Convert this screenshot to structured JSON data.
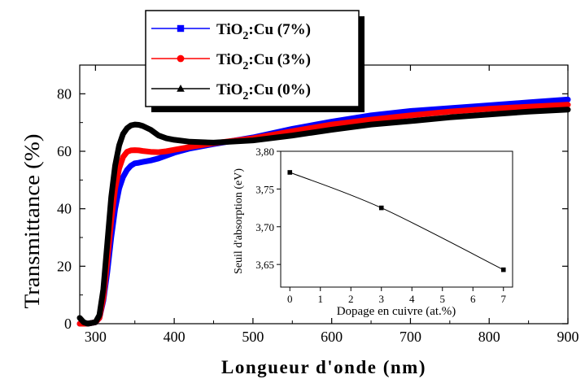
{
  "chart_data": [
    {
      "type": "line",
      "xlabel": "Longueur d'onde (nm)",
      "ylabel": "Transmittance (%)",
      "xlim": [
        280,
        900
      ],
      "ylim": [
        0,
        90
      ],
      "x_ticks": [
        "300",
        "400",
        "500",
        "600",
        "700",
        "800",
        "900"
      ],
      "y_ticks": [
        "0",
        "20",
        "40",
        "60",
        "80"
      ],
      "legend_position": "top-left",
      "series": [
        {
          "name_base": "TiO",
          "name_sub": "2",
          "name_rest": ":Cu (7%)",
          "color": "#0000ff",
          "marker": "square",
          "x": [
            280,
            290,
            300,
            305,
            310,
            315,
            320,
            325,
            330,
            335,
            340,
            345,
            350,
            355,
            360,
            370,
            380,
            390,
            400,
            420,
            450,
            500,
            550,
            600,
            650,
            700,
            750,
            800,
            850,
            900
          ],
          "y": [
            0,
            0,
            0.5,
            2,
            8,
            18,
            30,
            40,
            47,
            51,
            53.5,
            55,
            55.8,
            56,
            56.3,
            56.8,
            57.5,
            58.5,
            59.5,
            61,
            62.5,
            64.8,
            67.8,
            70.3,
            72.5,
            74,
            75,
            76,
            77,
            78
          ]
        },
        {
          "name_base": "TiO",
          "name_sub": "2",
          "name_rest": ":Cu (3%)",
          "color": "#ff0000",
          "marker": "circle",
          "x": [
            280,
            290,
            300,
            305,
            310,
            315,
            320,
            325,
            330,
            335,
            340,
            345,
            350,
            355,
            360,
            370,
            380,
            390,
            400,
            420,
            450,
            500,
            550,
            600,
            650,
            700,
            750,
            800,
            850,
            900
          ],
          "y": [
            0,
            0,
            0.5,
            2,
            9,
            22,
            36,
            47,
            54,
            58,
            59.8,
            60.3,
            60.4,
            60.3,
            60.1,
            59.8,
            59.7,
            60,
            60.5,
            61.5,
            62.8,
            64.5,
            67,
            69.3,
            71,
            72.5,
            73.8,
            74.8,
            75.5,
            76.2
          ]
        },
        {
          "name_base": "TiO",
          "name_sub": "2",
          "name_rest": ":Cu (0%)",
          "color": "#000000",
          "marker": "triangle",
          "x": [
            280,
            285,
            290,
            300,
            305,
            310,
            315,
            320,
            325,
            330,
            335,
            340,
            345,
            350,
            355,
            360,
            370,
            380,
            390,
            400,
            420,
            450,
            500,
            550,
            600,
            650,
            700,
            750,
            800,
            850,
            900
          ],
          "y": [
            2,
            0.5,
            0,
            0.5,
            3,
            12,
            28,
            44,
            55,
            62,
            66,
            68,
            69,
            69.3,
            69.2,
            68.8,
            67.5,
            65.5,
            64.5,
            64,
            63.3,
            63,
            63.8,
            65.5,
            67.5,
            69.3,
            70.5,
            71.8,
            72.8,
            73.8,
            74.5
          ]
        }
      ]
    },
    {
      "type": "line",
      "xlabel": "Dopage en cuivre (at.%)",
      "ylabel": "Seuil d'absorption (eV)",
      "xlim": [
        -0.3,
        7.3
      ],
      "ylim": [
        3.62,
        3.8
      ],
      "x_ticks": [
        "0",
        "1",
        "2",
        "3",
        "4",
        "5",
        "6",
        "7"
      ],
      "y_ticks": [
        "3,65",
        "3,70",
        "3,75",
        "3,80"
      ],
      "series": [
        {
          "marker": "square",
          "color": "#000000",
          "x": [
            0,
            3,
            7
          ],
          "y": [
            3.772,
            3.725,
            3.643
          ]
        }
      ]
    }
  ]
}
